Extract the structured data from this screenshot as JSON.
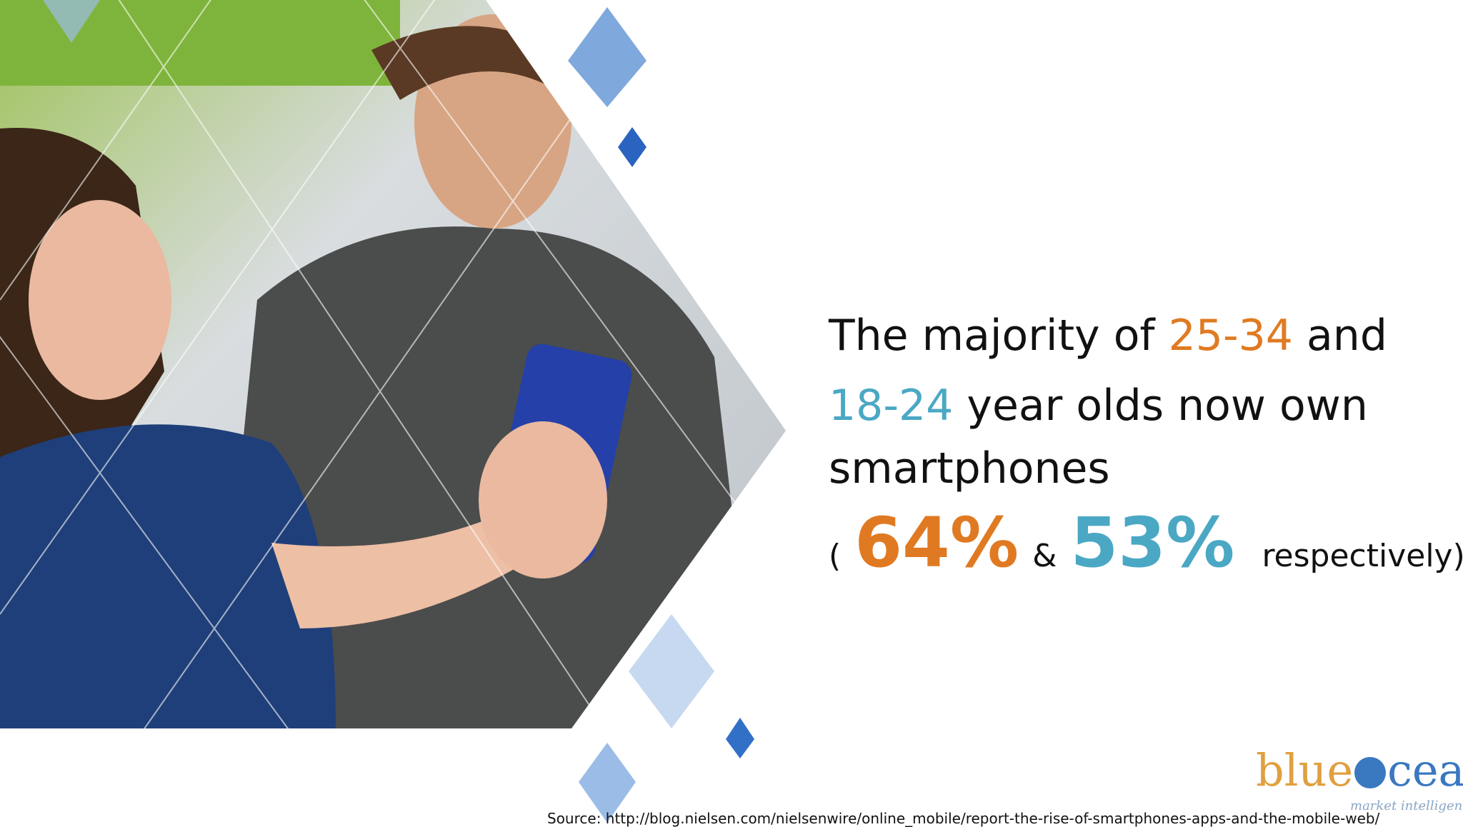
{
  "slide": {
    "headline": {
      "line1": {
        "before": "The majority of ",
        "age_a": "25-34",
        "after": " and"
      },
      "line2": {
        "age_b": "18-24",
        "after": " year olds now own"
      },
      "line3": "smartphones",
      "line4": {
        "open": "(",
        "pct_a": "64%",
        "amp": "&",
        "pct_b": "53%",
        "after": "respectively)"
      }
    },
    "source": "Source: http://blog.nielsen.com/nielsenwire/online_mobile/report-the-rise-of-smartphones-apps-and-the-mobile-web/",
    "logo": {
      "part1": "blue",
      "part2": "cean",
      "tagline": "market intelligence"
    }
  }
}
